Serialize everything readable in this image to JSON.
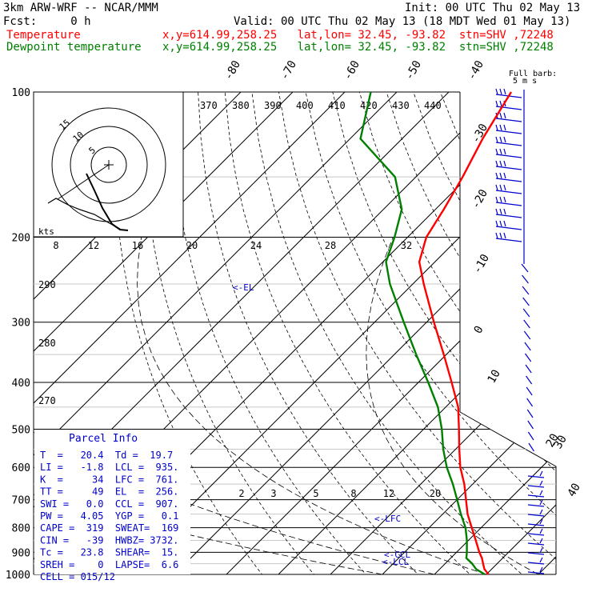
{
  "header": {
    "model": "3km ARW-WRF -- NCAR/MMM",
    "init": "Init: 00 UTC Thu 02 May 13",
    "fcst": "Fcst:     0 h",
    "valid": "Valid: 00 UTC Thu 02 May 13 (18 MDT Wed 01 May 13)",
    "temp_label": "Temperature",
    "temp_info": "x,y=614.99,258.25   lat,lon= 32.45, -93.82  stn=SHV ,72248",
    "dew_label": "Dewpoint temperature",
    "dew_info": "x,y=614.99,258.25   lat,lon= 32.45, -93.82  stn=SHV ,72248"
  },
  "colors": {
    "temperature": "#ff0000",
    "dewpoint": "#008000",
    "annotation": "#0000cc",
    "grid": "#000000"
  },
  "chart_data": {
    "type": "line",
    "plot": "skew-T log-P",
    "ylabel_units": "hPa",
    "pressure_ticks": [
      "100",
      "200",
      "300",
      "400",
      "500",
      "600",
      "700",
      "800",
      "900",
      "1000"
    ],
    "pressure_levels": [
      100,
      200,
      300,
      400,
      500,
      600,
      700,
      800,
      900,
      1000
    ],
    "temp_axis_labels": [
      "-80",
      "-70",
      "-60",
      "-50",
      "-40",
      "-30",
      "-20",
      "-10",
      "0",
      "10",
      "20",
      "30",
      "40"
    ],
    "theta_labels": [
      "370",
      "380",
      "390",
      "400",
      "410",
      "420",
      "430",
      "440"
    ],
    "mixing_ratio_labels_upper": [
      "8",
      "12",
      "16",
      "20",
      "24",
      "28",
      "32"
    ],
    "mixing_ratio_labels_lower": [
      "2",
      "3",
      "5",
      "8",
      "12",
      "20"
    ],
    "theta_side_labels": [
      "290",
      "280",
      "270"
    ],
    "wind_barb_key": "Full barb: 5 m s",
    "series": [
      {
        "name": "Temperature",
        "points": [
          [
            1000,
            20.4
          ],
          [
            975,
            18.6
          ],
          [
            950,
            17.3
          ],
          [
            925,
            16.0
          ],
          [
            900,
            14.4
          ],
          [
            850,
            11.4
          ],
          [
            800,
            8.2
          ],
          [
            750,
            4.8
          ],
          [
            700,
            1.7
          ],
          [
            650,
            -1.6
          ],
          [
            600,
            -5.6
          ],
          [
            550,
            -9.3
          ],
          [
            500,
            -13.2
          ],
          [
            450,
            -17.6
          ],
          [
            400,
            -23.6
          ],
          [
            350,
            -30.5
          ],
          [
            300,
            -38.6
          ],
          [
            250,
            -47.9
          ],
          [
            225,
            -53.0
          ],
          [
            200,
            -56.4
          ],
          [
            175,
            -58.4
          ],
          [
            150,
            -61.0
          ],
          [
            125,
            -64.5
          ],
          [
            100,
            -68.0
          ]
        ]
      },
      {
        "name": "Dewpoint temperature",
        "points": [
          [
            1000,
            19.7
          ],
          [
            975,
            17.0
          ],
          [
            950,
            15.2
          ],
          [
            925,
            13.0
          ],
          [
            900,
            12.0
          ],
          [
            850,
            9.7
          ],
          [
            800,
            7.0
          ],
          [
            750,
            3.5
          ],
          [
            700,
            0.0
          ],
          [
            650,
            -3.8
          ],
          [
            600,
            -8.2
          ],
          [
            550,
            -12.4
          ],
          [
            500,
            -16.5
          ],
          [
            450,
            -21.5
          ],
          [
            400,
            -28.1
          ],
          [
            350,
            -35.8
          ],
          [
            300,
            -44.4
          ],
          [
            250,
            -54.4
          ],
          [
            225,
            -59.4
          ],
          [
            200,
            -62.5
          ],
          [
            175,
            -66.5
          ],
          [
            150,
            -74.0
          ],
          [
            125,
            -88.0
          ],
          [
            100,
            -95.0
          ]
        ]
      }
    ],
    "hodograph": {
      "ring_labels": [
        "5",
        "10",
        "15"
      ],
      "units": "kts"
    },
    "annotations": [
      "<-EL",
      "<-LFC",
      "<-CCL",
      "<-LCL"
    ],
    "parcel_info": {
      "title": "Parcel Info",
      "rows": [
        "T  =   20.4  Td =  19.7",
        "LI =   -1.8  LCL =  935.",
        "K  =     34  LFC =  761.",
        "TT =     49  EL  =  256.",
        "SWI =   0.0  CCL =  907.",
        "PW =   4.05  YGP =   0.1",
        "CAPE =  319  SWEAT=  169",
        "CIN =   -39  HWBZ= 3732.",
        "Tc =   23.8  SHEAR=  15.",
        "SREH =    0  LAPSE=  6.6",
        "CELL = 015/12"
      ]
    }
  }
}
